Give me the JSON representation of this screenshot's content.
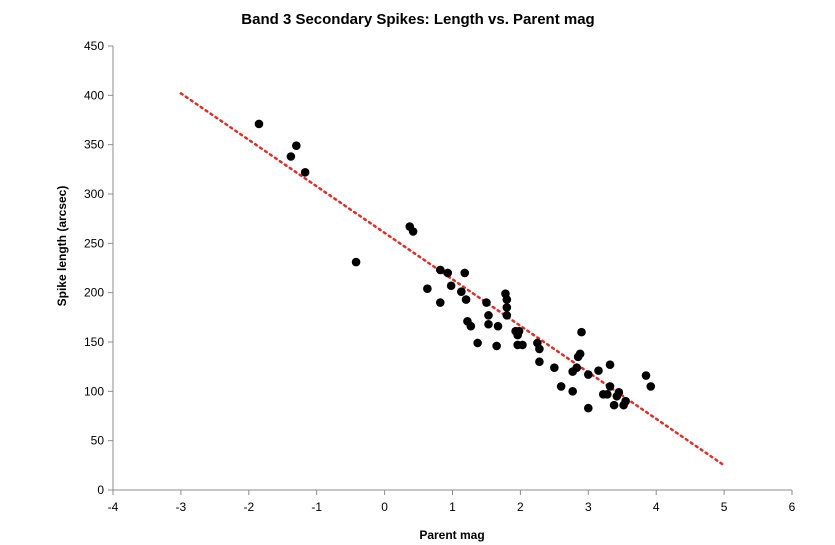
{
  "chart_data": {
    "type": "scatter",
    "title": "Band 3 Secondary Spikes: Length  vs. Parent mag",
    "xlabel": "Parent mag",
    "ylabel": "Spike length (arcsec)",
    "xlim": [
      -4,
      6
    ],
    "ylim": [
      0,
      450
    ],
    "xticks": [
      -4,
      -3,
      -2,
      -1,
      0,
      1,
      2,
      3,
      4,
      5,
      6
    ],
    "yticks": [
      0,
      50,
      100,
      150,
      200,
      250,
      300,
      350,
      400,
      450
    ],
    "grid": false,
    "legend": "none",
    "marker_color": "#000000",
    "trendline": {
      "style": "dotted",
      "color": "#d9302c",
      "x": [
        -3,
        5
      ],
      "y": [
        402,
        25
      ]
    },
    "series": [
      {
        "points": [
          [
            -1.85,
            371
          ],
          [
            -1.3,
            349
          ],
          [
            -1.38,
            338
          ],
          [
            -1.17,
            322
          ],
          [
            -0.42,
            231
          ],
          [
            0.37,
            267
          ],
          [
            0.42,
            262
          ],
          [
            0.63,
            204
          ],
          [
            0.82,
            223
          ],
          [
            0.82,
            190
          ],
          [
            0.93,
            220
          ],
          [
            0.98,
            207
          ],
          [
            1.13,
            201
          ],
          [
            1.18,
            220
          ],
          [
            1.2,
            193
          ],
          [
            1.22,
            171
          ],
          [
            1.27,
            166
          ],
          [
            1.37,
            149
          ],
          [
            1.5,
            190
          ],
          [
            1.53,
            177
          ],
          [
            1.53,
            168
          ],
          [
            1.65,
            146
          ],
          [
            1.67,
            166
          ],
          [
            1.78,
            199
          ],
          [
            1.8,
            193
          ],
          [
            1.8,
            185
          ],
          [
            1.8,
            177
          ],
          [
            1.93,
            161
          ],
          [
            1.96,
            157
          ],
          [
            1.98,
            161
          ],
          [
            1.96,
            147
          ],
          [
            2.03,
            147
          ],
          [
            2.25,
            149
          ],
          [
            2.28,
            143
          ],
          [
            2.28,
            130
          ],
          [
            2.5,
            124
          ],
          [
            2.6,
            105
          ],
          [
            2.77,
            100
          ],
          [
            2.77,
            120
          ],
          [
            2.83,
            124
          ],
          [
            2.85,
            135
          ],
          [
            2.88,
            138
          ],
          [
            2.9,
            160
          ],
          [
            3.0,
            83
          ],
          [
            3.0,
            117
          ],
          [
            3.15,
            121
          ],
          [
            3.22,
            97
          ],
          [
            3.28,
            97
          ],
          [
            3.32,
            105
          ],
          [
            3.32,
            127
          ],
          [
            3.38,
            86
          ],
          [
            3.42,
            95
          ],
          [
            3.45,
            99
          ],
          [
            3.52,
            86
          ],
          [
            3.55,
            90
          ],
          [
            3.85,
            116
          ],
          [
            3.92,
            105
          ]
        ]
      }
    ]
  }
}
